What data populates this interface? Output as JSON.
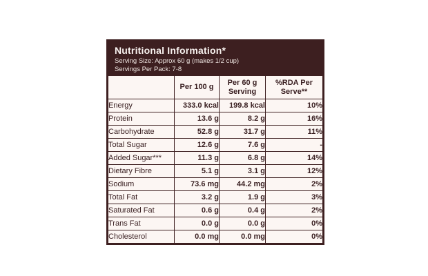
{
  "header": {
    "title": "Nutritional Information*",
    "serving_size": "Serving Size: Approx 60 g (makes 1/2 cup)",
    "servings_per_pack": "Servings Per Pack: 7-8"
  },
  "table": {
    "columns": [
      "",
      "Per 100 g",
      "Per 60 g Serving",
      "%RDA Per Serve**"
    ],
    "rows": [
      {
        "label": "Energy",
        "per100": "333.0 kcal",
        "per60": "199.8 kcal",
        "rda": "10%"
      },
      {
        "label": "Protein",
        "per100": "13.6 g",
        "per60": "8.2 g",
        "rda": "16%"
      },
      {
        "label": "Carbohydrate",
        "per100": "52.8 g",
        "per60": "31.7 g",
        "rda": "11%"
      },
      {
        "label": "Total Sugar",
        "per100": "12.6 g",
        "per60": "7.6 g",
        "rda": "-"
      },
      {
        "label": "Added Sugar***",
        "per100": "11.3 g",
        "per60": "6.8 g",
        "rda": "14%"
      },
      {
        "label": "Dietary Fibre",
        "per100": "5.1 g",
        "per60": "3.1 g",
        "rda": "12%"
      },
      {
        "label": "Sodium",
        "per100": "73.6 mg",
        "per60": "44.2 mg",
        "rda": "2%"
      },
      {
        "label": "Total Fat",
        "per100": "3.2 g",
        "per60": "1.9 g",
        "rda": "3%"
      },
      {
        "label": "Saturated Fat",
        "per100": "0.6 g",
        "per60": "0.4 g",
        "rda": "2%"
      },
      {
        "label": "Trans Fat",
        "per100": "0.0 g",
        "per60": "0.0 g",
        "rda": "0%"
      },
      {
        "label": "Cholesterol",
        "per100": "0.0 mg",
        "per60": "0.0 mg",
        "rda": "0%"
      }
    ]
  },
  "colors": {
    "header_bg": "#3D1F20",
    "border": "#3D1F20",
    "body_bg": "#FCF6F3",
    "header_text": "#F8F2EF",
    "body_text": "#3A2022",
    "page_bg": "#FFFFFF"
  }
}
